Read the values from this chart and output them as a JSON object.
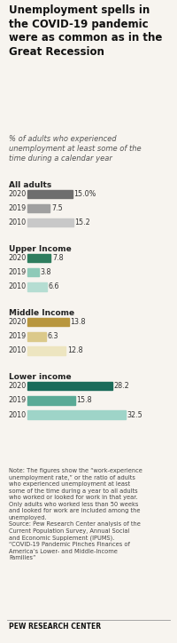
{
  "title": "Unemployment spells in\nthe COVID-19 pandemic\nwere as common as in the\nGreat Recession",
  "subtitle": "% of adults who experienced\nunemployment at least some of the\ntime during a calendar year",
  "groups": [
    {
      "label": "All adults",
      "years": [
        "2020",
        "2019",
        "2010"
      ],
      "values": [
        15.0,
        7.5,
        15.2
      ],
      "colors": [
        "#6e6e6e",
        "#a0a0a0",
        "#c8c8c8"
      ]
    },
    {
      "label": "Upper Income",
      "years": [
        "2020",
        "2019",
        "2010"
      ],
      "values": [
        7.8,
        3.8,
        6.6
      ],
      "colors": [
        "#2e7d5e",
        "#8ecab8",
        "#b5ddd2"
      ]
    },
    {
      "label": "Middle Income",
      "years": [
        "2020",
        "2019",
        "2010"
      ],
      "values": [
        13.8,
        6.3,
        12.8
      ],
      "colors": [
        "#b8963e",
        "#dbc98a",
        "#ede5c0"
      ]
    },
    {
      "label": "Lower income",
      "years": [
        "2020",
        "2019",
        "2010"
      ],
      "values": [
        28.2,
        15.8,
        32.5
      ],
      "colors": [
        "#1a6b5a",
        "#5aaa96",
        "#9ed4c8"
      ]
    }
  ],
  "value_labels": [
    [
      "15.0%",
      "7.5",
      "15.2"
    ],
    [
      "7.8",
      "3.8",
      "6.6"
    ],
    [
      "13.8",
      "6.3",
      "12.8"
    ],
    [
      "28.2",
      "15.8",
      "32.5"
    ]
  ],
  "note_text": "Note: The figures show the “work-experience\nunemployment rate,” or the ratio of adults\nwho experienced unemployment at least\nsome of the time during a year to all adults\nwho worked or looked for work in that year.\nOnly adults who worked less than 50 weeks\nand looked for work are included among the\nunemployed.\nSource: Pew Research Center analysis of the\nCurrent Population Survey, Annual Social\nand Economic Supplement (IPUMS).\n“COVID-19 Pandemic Pinches Finances of\nAmerica’s Lower- and Middle-Income\nFamilies”",
  "footer": "PEW RESEARCH CENTER",
  "bg_color": "#f7f4ef",
  "max_val": 35
}
